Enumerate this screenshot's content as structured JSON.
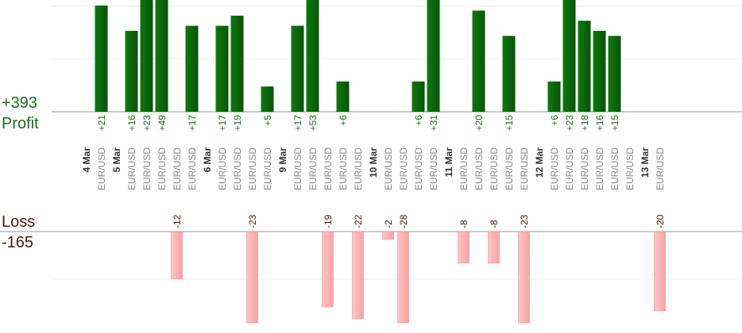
{
  "summary": {
    "profit_total": "+393",
    "profit_label": "Profit",
    "loss_label": "Loss",
    "loss_total": "-165"
  },
  "colors": {
    "profit_bar": "#0c6a0c",
    "profit_bar_dark": "#084d08",
    "profit_text": "#1a6e1a",
    "loss_bar": "#ffb6b6",
    "loss_bar_border": "#e89696",
    "loss_text": "#4a1a14",
    "day_label": "#333333",
    "pair_label": "#888888",
    "gridline": "#eeeeee",
    "axis": "#999999"
  },
  "chart_data": {
    "type": "bar",
    "profit_scale_max": 21,
    "loss_scale_max": 23,
    "columns": [
      {
        "day": "4 Mar",
        "pair": null,
        "value": null
      },
      {
        "day": null,
        "pair": "EUR/USD",
        "value": 21
      },
      {
        "day": "5 Mar",
        "pair": null,
        "value": null
      },
      {
        "day": null,
        "pair": "EUR/USD",
        "value": 16
      },
      {
        "day": null,
        "pair": "EUR/USD",
        "value": 23
      },
      {
        "day": null,
        "pair": "EUR/USD",
        "value": 49
      },
      {
        "day": null,
        "pair": "EUR/USD",
        "value": -12
      },
      {
        "day": null,
        "pair": "EUR/USD",
        "value": 17
      },
      {
        "day": "6 Mar",
        "pair": null,
        "value": null
      },
      {
        "day": null,
        "pair": "EUR/USD",
        "value": 17
      },
      {
        "day": null,
        "pair": "EUR/USD",
        "value": 19
      },
      {
        "day": null,
        "pair": "EUR/USD",
        "value": -23
      },
      {
        "day": null,
        "pair": "EUR/USD",
        "value": 5
      },
      {
        "day": "9 Mar",
        "pair": null,
        "value": null
      },
      {
        "day": null,
        "pair": "EUR/USD",
        "value": 17
      },
      {
        "day": null,
        "pair": "EUR/USD",
        "value": 53
      },
      {
        "day": null,
        "pair": "EUR/USD",
        "value": -19
      },
      {
        "day": null,
        "pair": "EUR/USD",
        "value": 6
      },
      {
        "day": null,
        "pair": "EUR/USD",
        "value": -22
      },
      {
        "day": "10 Mar",
        "pair": null,
        "value": null
      },
      {
        "day": null,
        "pair": "EUR/USD",
        "value": -2
      },
      {
        "day": null,
        "pair": "EUR/USD",
        "value": -28
      },
      {
        "day": null,
        "pair": "EUR/USD",
        "value": 6
      },
      {
        "day": null,
        "pair": "EUR/USD",
        "value": 31
      },
      {
        "day": "11 Mar",
        "pair": null,
        "value": null
      },
      {
        "day": null,
        "pair": "EUR/USD",
        "value": -8
      },
      {
        "day": null,
        "pair": "EUR/USD",
        "value": 20
      },
      {
        "day": null,
        "pair": "EUR/USD",
        "value": -8
      },
      {
        "day": null,
        "pair": "EUR/USD",
        "value": 15
      },
      {
        "day": null,
        "pair": "EUR/USD",
        "value": -23
      },
      {
        "day": "12 Mar",
        "pair": null,
        "value": null
      },
      {
        "day": null,
        "pair": "EUR/USD",
        "value": 6
      },
      {
        "day": null,
        "pair": "EUR/USD",
        "value": 23
      },
      {
        "day": null,
        "pair": "EUR/USD",
        "value": 18
      },
      {
        "day": null,
        "pair": "EUR/USD",
        "value": 16
      },
      {
        "day": null,
        "pair": "EUR/USD",
        "value": 15
      },
      {
        "day": null,
        "pair": "EUR/USD",
        "value": null
      },
      {
        "day": "13 Mar",
        "pair": null,
        "value": null
      },
      {
        "day": null,
        "pair": "EUR/USD",
        "value": -20
      }
    ]
  }
}
